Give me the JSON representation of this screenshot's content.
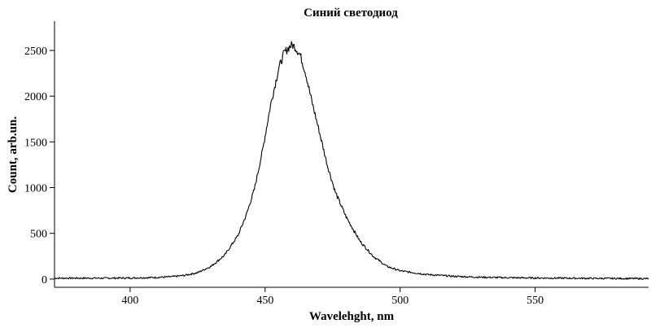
{
  "chart_data": {
    "type": "line",
    "title": "Синий светодиод",
    "xlabel": "Wavelehght, nm",
    "ylabel": "Count, arb.un.",
    "xlim": [
      372,
      592
    ],
    "ylim": [
      -90,
      2820
    ],
    "x_ticks": [
      {
        "value": 400,
        "label": "400"
      },
      {
        "value": 450,
        "label": "450"
      },
      {
        "value": 500,
        "label": "500"
      },
      {
        "value": 550,
        "label": "550"
      }
    ],
    "y_ticks": [
      {
        "value": 0,
        "label": "0"
      },
      {
        "value": 500,
        "label": "500"
      },
      {
        "value": 1000,
        "label": "1000"
      },
      {
        "value": 1500,
        "label": "1500"
      },
      {
        "value": 2000,
        "label": "2000"
      },
      {
        "value": 2500,
        "label": "2500"
      }
    ],
    "grid": false,
    "legend": "none",
    "line_color": "#000000",
    "series": [
      {
        "x": [
          372,
          390,
          400,
          410,
          415,
          420,
          425,
          430,
          435,
          440,
          443,
          446,
          449,
          452,
          455,
          457,
          459,
          460,
          461,
          463,
          465,
          467,
          470,
          473,
          476,
          480,
          485,
          490,
          495,
          500,
          510,
          520,
          530,
          540,
          550,
          570,
          592
        ],
        "y": [
          10,
          10,
          12,
          18,
          25,
          40,
          70,
          140,
          260,
          480,
          700,
          980,
          1400,
          1900,
          2300,
          2470,
          2540,
          2560,
          2540,
          2450,
          2250,
          1980,
          1620,
          1250,
          950,
          680,
          420,
          250,
          140,
          90,
          50,
          30,
          20,
          15,
          12,
          8,
          5
        ]
      }
    ]
  }
}
